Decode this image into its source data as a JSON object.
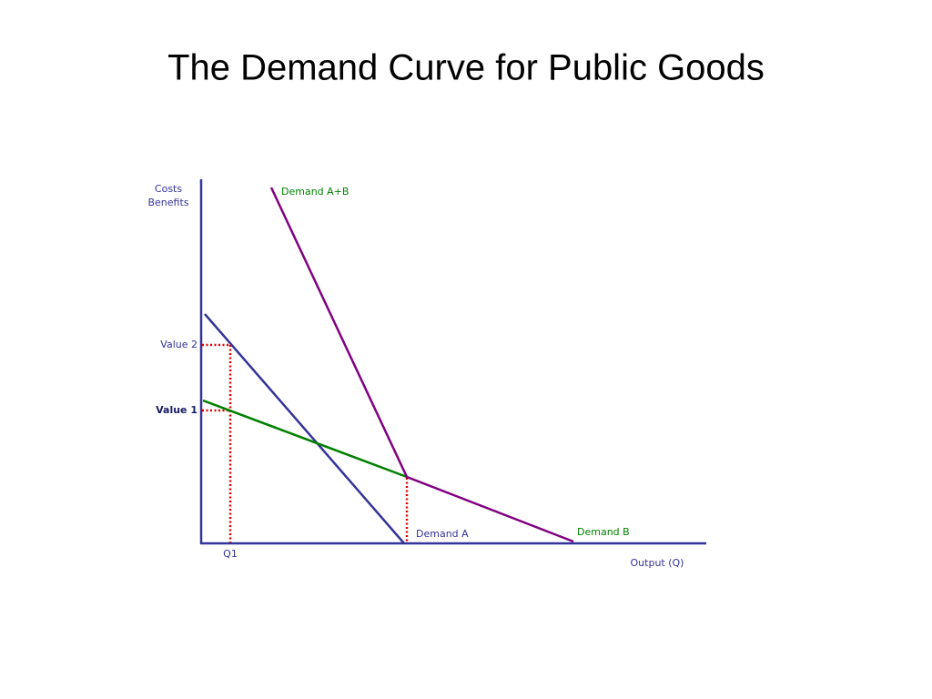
{
  "header": {
    "title": "The Demand Curve for Public Goods"
  },
  "axes": {
    "y_label": [
      "Costs",
      "Benefits"
    ],
    "x_label": "Output (Q)"
  },
  "curves": {
    "demand_ab": "Demand A+B",
    "demand_a": "Demand A",
    "demand_b": "Demand B"
  },
  "markers": {
    "value_2": "Value 2",
    "value_1": "Value 1",
    "q1": "Q1"
  }
}
